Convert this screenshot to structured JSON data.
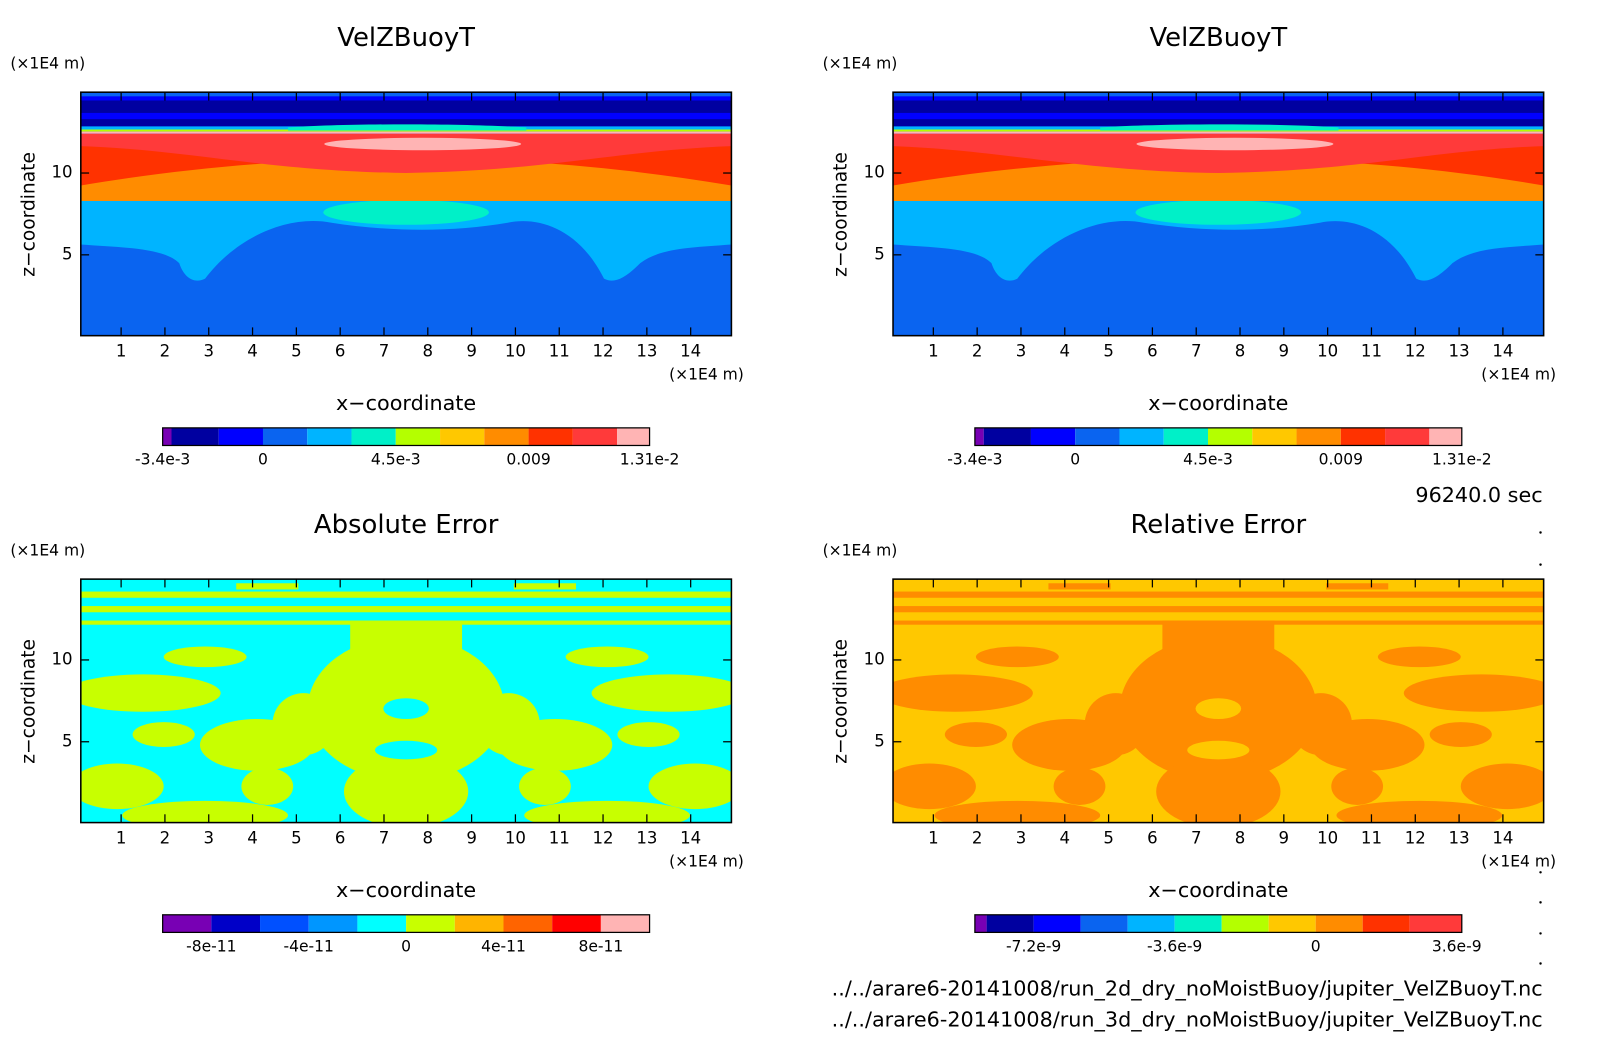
{
  "chart_data": [
    {
      "type": "contour",
      "title": "VelZBuoyT",
      "x_label": "x−coordinate",
      "y_label": "z−coordinate",
      "x_unit": "(×1E4 m)",
      "y_unit": "(×1E4 m)",
      "xlim": [
        0.08,
        14.93
      ],
      "ylim": [
        0.06,
        14.94
      ],
      "xticks": [
        1,
        2,
        3,
        4,
        5,
        6,
        7,
        8,
        9,
        10,
        11,
        12,
        13,
        14
      ],
      "yticks": [
        5,
        10
      ],
      "colorbar": {
        "levels": [
          -0.0034,
          -0.0031,
          -0.0015,
          0,
          0.0015,
          0.003,
          0.0045,
          0.006,
          0.0075,
          0.009,
          0.0105,
          0.012,
          0.0131
        ],
        "colors": [
          "#7800b4",
          "#0000a0",
          "#0000ff",
          "#0a64f0",
          "#00b4ff",
          "#00f0c8",
          "#b4ff00",
          "#ffc800",
          "#ff8c00",
          "#ff3200",
          "#ff3a3a",
          "#ffb4b4"
        ],
        "ticks": [
          {
            "value": -0.0034,
            "label": "-3.4e-3"
          },
          0,
          {
            "value": 0.0045,
            "label": "4.5e-3"
          },
          0.009,
          {
            "value": 0.0131,
            "label": "1.31e-2"
          }
        ]
      }
    },
    {
      "type": "contour",
      "title": "VelZBuoyT",
      "x_label": "x−coordinate",
      "y_label": "z−coordinate",
      "x_unit": "(×1E4 m)",
      "y_unit": "(×1E4 m)",
      "xlim": [
        0.08,
        14.93
      ],
      "ylim": [
        0.06,
        14.94
      ],
      "xticks": [
        1,
        2,
        3,
        4,
        5,
        6,
        7,
        8,
        9,
        10,
        11,
        12,
        13,
        14
      ],
      "yticks": [
        5,
        10
      ],
      "colorbar": {
        "levels": [
          -0.0034,
          -0.0031,
          -0.0015,
          0,
          0.0015,
          0.003,
          0.0045,
          0.006,
          0.0075,
          0.009,
          0.0105,
          0.012,
          0.0131
        ],
        "colors": [
          "#7800b4",
          "#0000a0",
          "#0000ff",
          "#0a64f0",
          "#00b4ff",
          "#00f0c8",
          "#b4ff00",
          "#ffc800",
          "#ff8c00",
          "#ff3200",
          "#ff3a3a",
          "#ffb4b4"
        ],
        "ticks": [
          {
            "value": -0.0034,
            "label": "-3.4e-3"
          },
          0,
          {
            "value": 0.0045,
            "label": "4.5e-3"
          },
          0.009,
          {
            "value": 0.0131,
            "label": "1.31e-2"
          }
        ]
      }
    },
    {
      "type": "contour",
      "title": "Absolute Error",
      "x_label": "x−coordinate",
      "y_label": "z−coordinate",
      "x_unit": "(×1E4 m)",
      "y_unit": "(×1E4 m)",
      "xlim": [
        0.08,
        14.93
      ],
      "ylim": [
        0.06,
        14.94
      ],
      "xticks": [
        1,
        2,
        3,
        4,
        5,
        6,
        7,
        8,
        9,
        10,
        11,
        12,
        13,
        14
      ],
      "yticks": [
        5,
        10
      ],
      "colorbar": {
        "levels": [
          -1e-10,
          -8e-11,
          -6e-11,
          -4e-11,
          -2e-11,
          0,
          2e-11,
          4e-11,
          6e-11,
          8e-11,
          1e-10
        ],
        "colors": [
          "#7800b4",
          "#0000c8",
          "#0050ff",
          "#0096ff",
          "#00ffff",
          "#c8ff00",
          "#ffb400",
          "#ff6400",
          "#ff0000",
          "#ffb4b4"
        ],
        "ticks": [
          -8e-11,
          -4e-11,
          0,
          4e-11,
          8e-11
        ]
      }
    },
    {
      "type": "contour",
      "title": "Relative Error",
      "x_label": "x−coordinate",
      "y_label": "z−coordinate",
      "x_unit": "(×1E4 m)",
      "y_unit": "(×1E4 m)",
      "xlim": [
        0.08,
        14.93
      ],
      "ylim": [
        0.06,
        14.94
      ],
      "xticks": [
        1,
        2,
        3,
        4,
        5,
        6,
        7,
        8,
        9,
        10,
        11,
        12,
        13,
        14
      ],
      "yticks": [
        5,
        10
      ],
      "colorbar": {
        "levels": [
          -8.7e-09,
          -8.4e-09,
          -7.2e-09,
          -6e-09,
          -4.8e-09,
          -3.6e-09,
          -2.4e-09,
          -1.2e-09,
          0,
          1.2e-09,
          2.4e-09,
          3.73e-09
        ],
        "colors": [
          "#7800b4",
          "#0000a0",
          "#0000ff",
          "#0a64f0",
          "#00b4ff",
          "#00f0c8",
          "#b4ff00",
          "#ffc800",
          "#ff8c00",
          "#ff3200",
          "#ff3a3a"
        ],
        "ticks": [
          -7.2e-09,
          -3.6e-09,
          0,
          3.6e-09
        ]
      }
    }
  ],
  "time_label": "96240.0 sec",
  "files": [
    "../../arare6-20141008/run_2d_dry_noMoistBuoy/jupiter_VelZBuoyT.nc",
    "../../arare6-20141008/run_3d_dry_noMoistBuoy/jupiter_VelZBuoyT.nc"
  ]
}
